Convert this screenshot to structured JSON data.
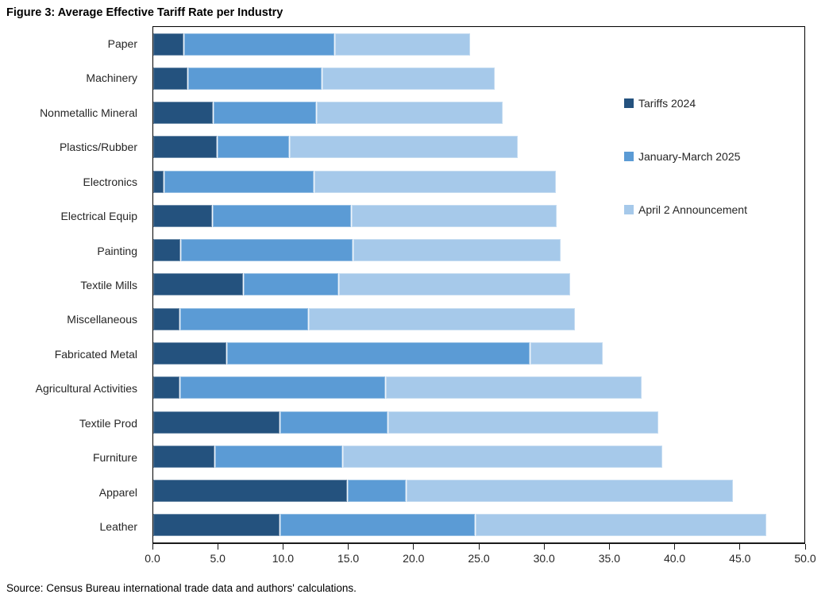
{
  "title": "Figure 3: Average Effective Tariff Rate per Industry",
  "source": "Source: Census Bureau international trade data and authors' calculations.",
  "chart_data": {
    "type": "bar",
    "orientation": "horizontal",
    "stacked": true,
    "grid": false,
    "legend_position": "inside-right",
    "xlim": [
      0,
      50
    ],
    "x_ticks": [
      0,
      5,
      10,
      15,
      20,
      25,
      30,
      35,
      40,
      45,
      50
    ],
    "x_tick_labels": [
      "0.0",
      "5.0",
      "10.0",
      "15.0",
      "20.0",
      "25.0",
      "30.0",
      "35.0",
      "40.0",
      "45.0",
      "50.0"
    ],
    "categories": [
      "Paper",
      "Machinery",
      "Nonmetallic Mineral",
      "Plastics/Rubber",
      "Electronics",
      "Electrical Equip",
      "Painting",
      "Textile Mills",
      "Miscellaneous",
      "Fabricated Metal",
      "Agricultural Activities",
      "Textile Prod",
      "Furniture",
      "Apparel",
      "Leather"
    ],
    "series": [
      {
        "name": "Tariffs 2024",
        "color": "#24527E",
        "values": [
          2.3,
          2.6,
          4.6,
          4.9,
          0.8,
          4.5,
          2.1,
          6.9,
          2.0,
          5.6,
          2.0,
          9.7,
          4.7,
          14.9,
          9.7
        ]
      },
      {
        "name": "January-March 2025",
        "color": "#5B9BD5",
        "values": [
          11.6,
          10.3,
          7.9,
          5.5,
          11.5,
          10.7,
          13.2,
          7.3,
          9.9,
          23.3,
          15.8,
          8.3,
          9.8,
          4.5,
          15.0
        ]
      },
      {
        "name": "April 2 Announcement",
        "color": "#A6C9EA",
        "values": [
          10.4,
          13.3,
          14.3,
          17.6,
          18.6,
          15.8,
          16.0,
          17.8,
          20.5,
          5.6,
          19.7,
          20.8,
          24.6,
          25.1,
          22.4
        ]
      }
    ]
  }
}
